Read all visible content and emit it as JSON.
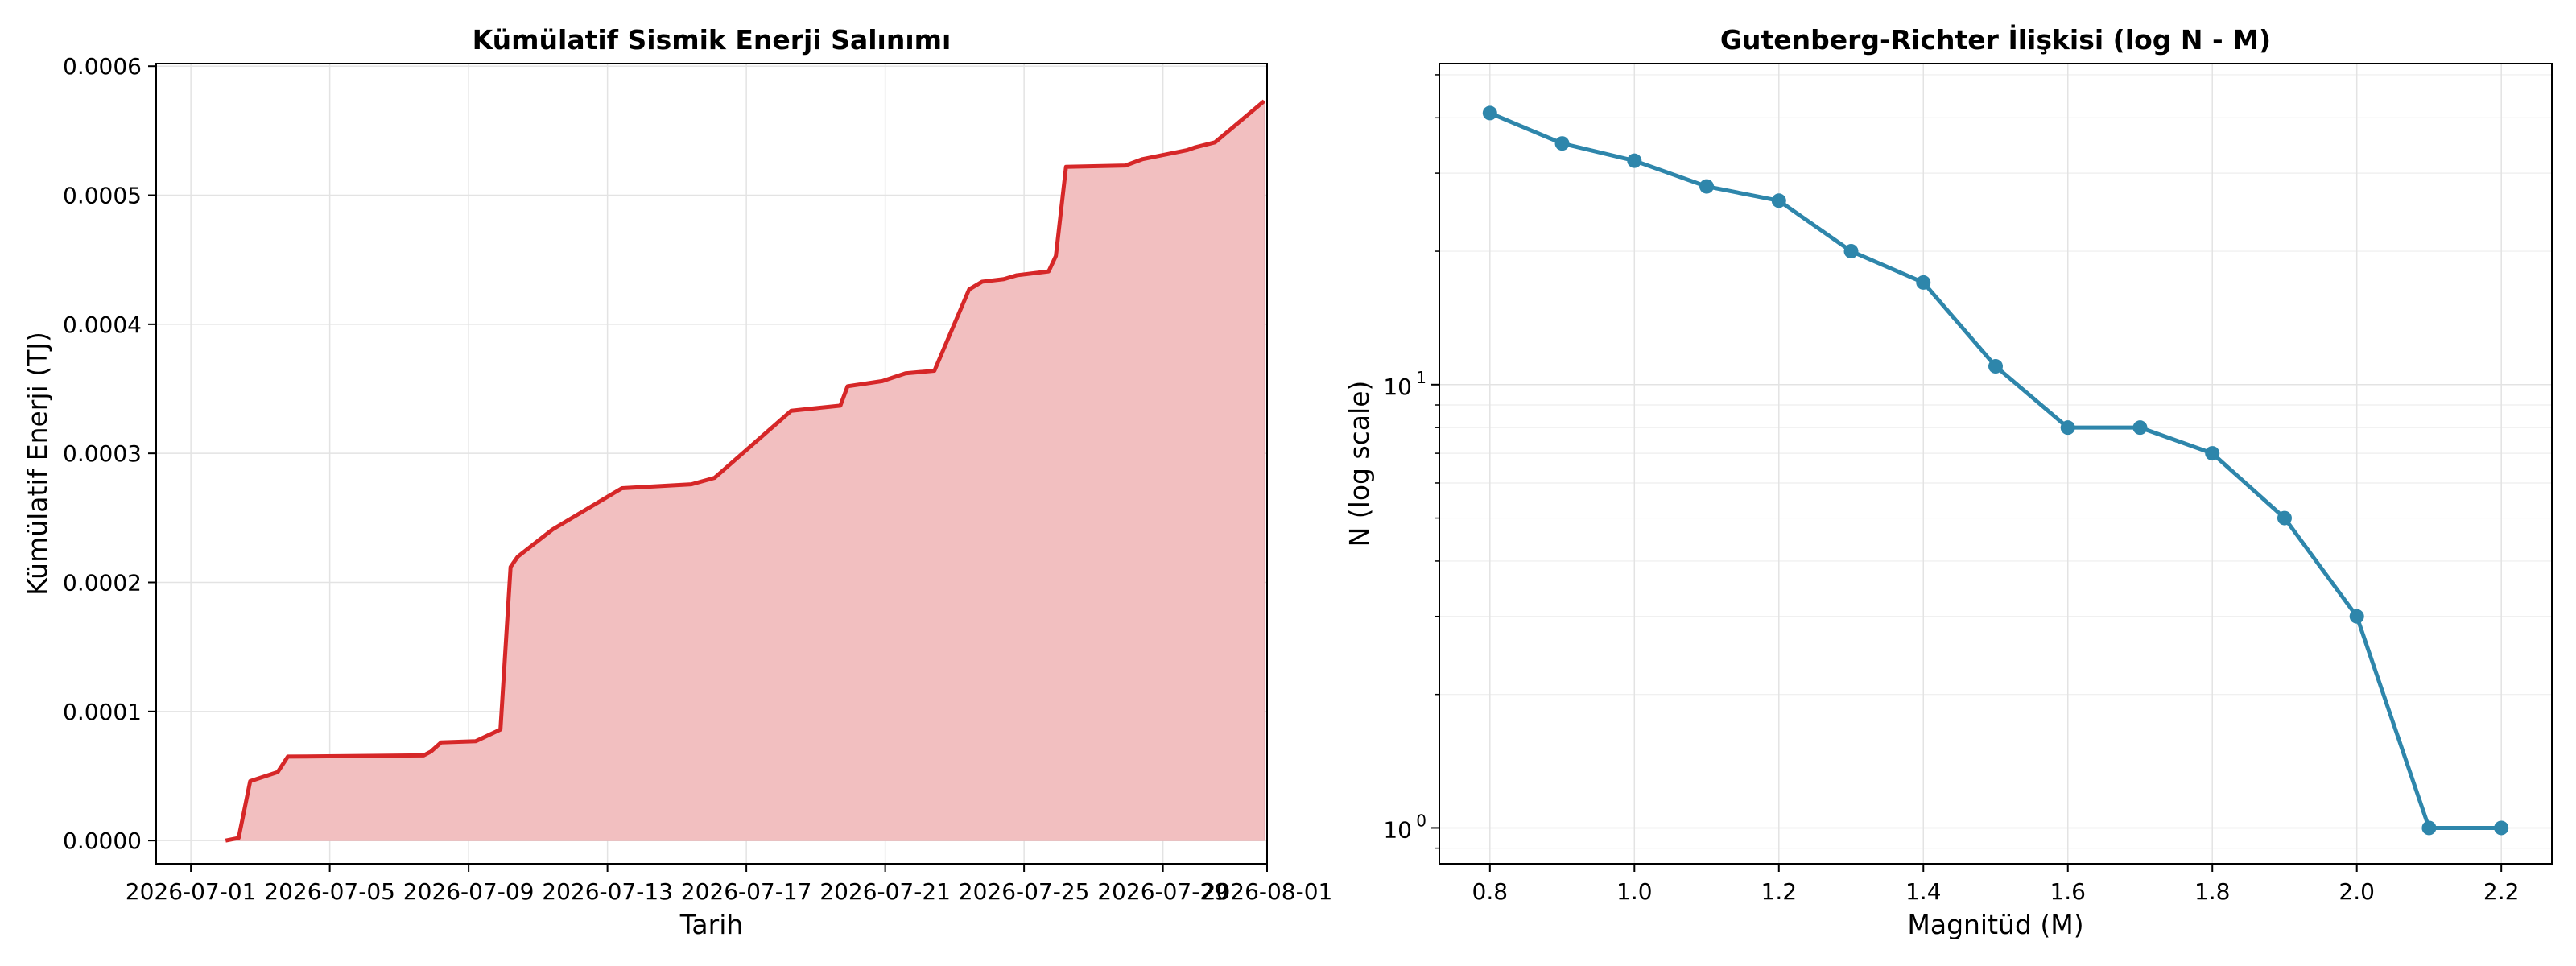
{
  "colors": {
    "energy_line": "#d62728",
    "energy_fill": "#f2bfc0",
    "gr_line": "#2e86ab",
    "grid": "#e3e3e3",
    "axes": "#000000"
  },
  "chart_data": [
    {
      "type": "area",
      "title": "Kümülatif Sismik Enerji Salınımı",
      "xlabel": "Tarih",
      "ylabel": "Kümülatif Enerji (TJ)",
      "grid": true,
      "xlim": [
        "2026-06-30",
        "2026-08-01"
      ],
      "ylim": [
        -1.8e-05,
        0.000602
      ],
      "x_ticks": [
        "2026-07-01",
        "2026-07-05",
        "2026-07-09",
        "2026-07-13",
        "2026-07-17",
        "2026-07-21",
        "2026-07-25",
        "2026-07-29",
        "2026-08-01"
      ],
      "y_ticks": [
        "0.0000",
        "0.0001",
        "0.0002",
        "0.0003",
        "0.0004",
        "0.0005",
        "0.0006"
      ],
      "series": [
        {
          "x": [
            "2026-07-02 00:00",
            "2026-07-02 09:00",
            "2026-07-02 17:00",
            "2026-07-03 12:00",
            "2026-07-03 19:00",
            "2026-07-07 17:00",
            "2026-07-07 22:00",
            "2026-07-08 05:00",
            "2026-07-09 05:00",
            "2026-07-09 22:00",
            "2026-07-10 05:00",
            "2026-07-10 10:00",
            "2026-07-11 10:00",
            "2026-07-13 10:00",
            "2026-07-15 10:00",
            "2026-07-16 02:00",
            "2026-07-18 07:00",
            "2026-07-19 17:00",
            "2026-07-19 22:00",
            "2026-07-20 22:00",
            "2026-07-21 14:00",
            "2026-07-22 10:00",
            "2026-07-23 10:00",
            "2026-07-23 19:00",
            "2026-07-24 10:00",
            "2026-07-24 19:00",
            "2026-07-25 17:00",
            "2026-07-25 22:00",
            "2026-07-26 05:00",
            "2026-07-27 22:00",
            "2026-07-28 10:00",
            "2026-07-29 17:00",
            "2026-07-29 22:00",
            "2026-07-30 12:00",
            "2026-07-31 22:00"
          ],
          "y": [
            0.0,
            2e-06,
            4.6e-05,
            5.3e-05,
            6.5e-05,
            6.6e-05,
            6.9e-05,
            7.6e-05,
            7.7e-05,
            8.6e-05,
            0.000212,
            0.00022,
            0.000241,
            0.000273,
            0.000276,
            0.000281,
            0.000333,
            0.000337,
            0.000352,
            0.000356,
            0.000362,
            0.000364,
            0.000427,
            0.000433,
            0.000435,
            0.000438,
            0.000441,
            0.000453,
            0.000522,
            0.000523,
            0.000528,
            0.000535,
            0.000537,
            0.000541,
            0.000573
          ]
        }
      ]
    },
    {
      "type": "line",
      "title": "Gutenberg-Richter İlişkisi (log N - M)",
      "xlabel": "Magnitüd (M)",
      "ylabel": "N (log scale)",
      "y_scale": "log",
      "grid": true,
      "xlim": [
        0.73,
        2.27
      ],
      "ylim": [
        0.83,
        53
      ],
      "x_ticks": [
        "0.8",
        "1.0",
        "1.2",
        "1.4",
        "1.6",
        "1.8",
        "2.0",
        "2.2"
      ],
      "y_ticks": [
        {
          "base": "10",
          "exp": "0"
        },
        {
          "base": "10",
          "exp": "1"
        }
      ],
      "x": [
        0.8,
        0.9,
        1.0,
        1.1,
        1.2,
        1.3,
        1.4,
        1.5,
        1.6,
        1.7,
        1.8,
        1.9,
        2.0,
        2.1,
        2.2
      ],
      "y": [
        41,
        35,
        32,
        28,
        26,
        20,
        17,
        11,
        8,
        8,
        7,
        5,
        3,
        1,
        1
      ]
    }
  ]
}
